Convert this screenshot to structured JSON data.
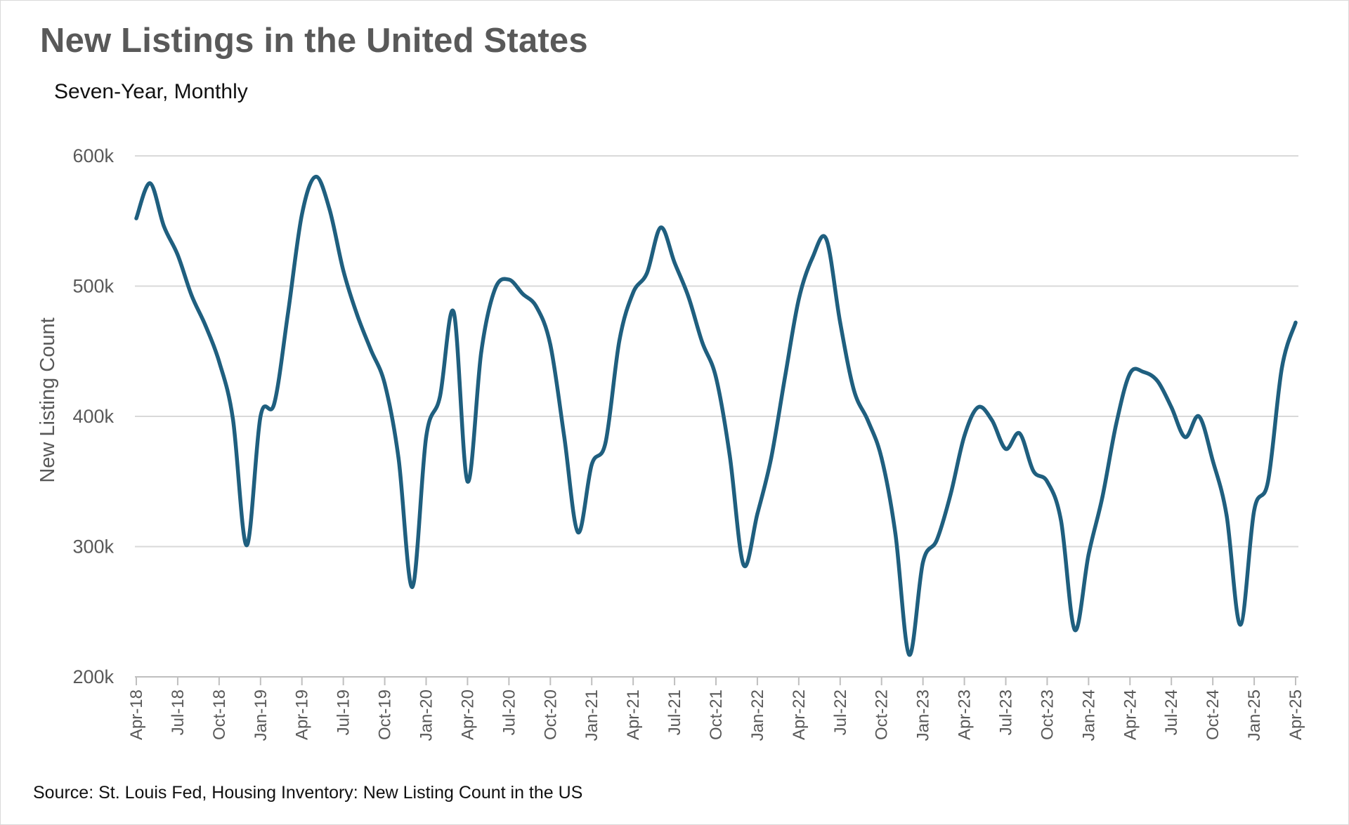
{
  "title": "New Listings in the United States",
  "subtitle": "Seven-Year, Monthly",
  "source": "Source: St. Louis Fed, Housing Inventory: New Listing Count in the US",
  "colors": {
    "line": "#1f5f7f",
    "grid": "#d9d9d9",
    "axis": "#bfbfbf",
    "text": "#595959"
  },
  "chart_data": {
    "type": "line",
    "title": "New Listings in the United States",
    "subtitle": "Seven-Year, Monthly",
    "xlabel": "",
    "ylabel": "New Listing Count",
    "ylim": [
      200000,
      600000
    ],
    "yticks": [
      200000,
      300000,
      400000,
      500000,
      600000
    ],
    "ytick_labels": [
      "200k",
      "300k",
      "400k",
      "500k",
      "600k"
    ],
    "xtick_labels": [
      "Apr-18",
      "Jul-18",
      "Oct-18",
      "Jan-19",
      "Apr-19",
      "Jul-19",
      "Oct-19",
      "Jan-20",
      "Apr-20",
      "Jul-20",
      "Oct-20",
      "Jan-21",
      "Apr-21",
      "Jul-21",
      "Oct-21",
      "Jan-22",
      "Apr-22",
      "Jul-22",
      "Oct-22",
      "Jan-23",
      "Apr-23",
      "Jul-23",
      "Oct-23",
      "Jan-24",
      "Apr-24",
      "Jul-24",
      "Oct-24",
      "Jan-25",
      "Apr-25"
    ],
    "grid": "horizontal",
    "legend": "none",
    "x": [
      "Apr-18",
      "May-18",
      "Jun-18",
      "Jul-18",
      "Aug-18",
      "Sep-18",
      "Oct-18",
      "Nov-18",
      "Dec-18",
      "Jan-19",
      "Feb-19",
      "Mar-19",
      "Apr-19",
      "May-19",
      "Jun-19",
      "Jul-19",
      "Aug-19",
      "Sep-19",
      "Oct-19",
      "Nov-19",
      "Dec-19",
      "Jan-20",
      "Feb-20",
      "Mar-20",
      "Apr-20",
      "May-20",
      "Jun-20",
      "Jul-20",
      "Aug-20",
      "Sep-20",
      "Oct-20",
      "Nov-20",
      "Dec-20",
      "Jan-21",
      "Feb-21",
      "Mar-21",
      "Apr-21",
      "May-21",
      "Jun-21",
      "Jul-21",
      "Aug-21",
      "Sep-21",
      "Oct-21",
      "Nov-21",
      "Dec-21",
      "Jan-22",
      "Feb-22",
      "Mar-22",
      "Apr-22",
      "May-22",
      "Jun-22",
      "Jul-22",
      "Aug-22",
      "Sep-22",
      "Oct-22",
      "Nov-22",
      "Dec-22",
      "Jan-23",
      "Feb-23",
      "Mar-23",
      "Apr-23",
      "May-23",
      "Jun-23",
      "Jul-23",
      "Aug-23",
      "Sep-23",
      "Oct-23",
      "Nov-23",
      "Dec-23",
      "Jan-24",
      "Feb-24",
      "Mar-24",
      "Apr-24",
      "May-24",
      "Jun-24",
      "Jul-24",
      "Aug-24",
      "Sep-24",
      "Oct-24",
      "Nov-24",
      "Dec-24",
      "Jan-25",
      "Feb-25",
      "Mar-25",
      "Apr-25"
    ],
    "series": [
      {
        "values": [
          552000,
          579000,
          546000,
          524000,
          493000,
          470000,
          442000,
          398000,
          301000,
          400000,
          410000,
          480000,
          555000,
          584000,
          559000,
          512000,
          478000,
          451000,
          425000,
          368000,
          269000,
          384000,
          415000,
          480000,
          350000,
          450000,
          498000,
          505000,
          494000,
          484000,
          455000,
          385000,
          311000,
          363000,
          380000,
          458000,
          495000,
          510000,
          545000,
          518000,
          492000,
          457000,
          430000,
          370000,
          286000,
          325000,
          368000,
          430000,
          490000,
          522000,
          536000,
          472000,
          420000,
          397000,
          368000,
          310000,
          217000,
          288000,
          305000,
          340000,
          385000,
          407000,
          397000,
          375000,
          387000,
          358000,
          350000,
          320000,
          236000,
          294000,
          338000,
          394000,
          433000,
          434000,
          427000,
          407000,
          384000,
          400000,
          366000,
          324000,
          240000,
          328000,
          350000,
          437000,
          472000
        ]
      }
    ]
  }
}
